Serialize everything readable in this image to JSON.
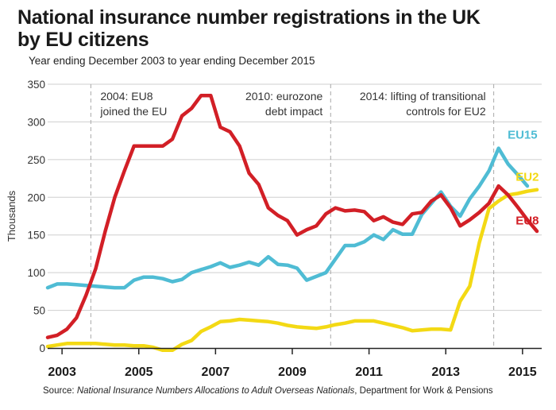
{
  "header": {
    "title_line1": "National insurance number registrations in the UK",
    "title_line2": "by EU citizens",
    "subtitle": "Year ending December 2003 to year ending December 2015"
  },
  "source": {
    "prefix": "Source: ",
    "publication": "National Insurance Numbers Allocations to Adult Overseas Nationals",
    "suffix": ", Department for Work & Pensions"
  },
  "colors": {
    "EU8": "#d21f26",
    "EU15": "#4fbcd4",
    "EU2": "#f3d914",
    "grid": "#cfcfcf",
    "axis": "#222222"
  },
  "chart_data": {
    "type": "line",
    "title": "National insurance number registrations in the UK by EU citizens",
    "xlabel": "",
    "ylabel": "Thousands",
    "xlim": [
      2002.625,
      2015.5
    ],
    "ylim": [
      0,
      350
    ],
    "yticks": [
      0,
      50,
      100,
      150,
      200,
      250,
      300,
      350
    ],
    "xticks": [
      2003,
      2005,
      2007,
      2009,
      2011,
      2013,
      2015
    ],
    "xtick_labels": [
      "2003",
      "2005",
      "2007",
      "2009",
      "2011",
      "2013",
      "2015"
    ],
    "grid": true,
    "annotations": [
      {
        "x": 2003.75,
        "lines": [
          "2004: EU8",
          "joined the EU"
        ],
        "align": "left"
      },
      {
        "x": 2010.0,
        "lines": [
          "2010: eurozone",
          "debt impact"
        ],
        "align": "right"
      },
      {
        "x": 2014.25,
        "lines": [
          "2014: lifting of transitional",
          "controls for EU2"
        ],
        "align": "right"
      }
    ],
    "series": [
      {
        "name": "EU8",
        "x": [
          2002.625,
          2002.875,
          2003.125,
          2003.375,
          2003.625,
          2003.875,
          2004.125,
          2004.375,
          2004.625,
          2004.875,
          2005.125,
          2005.375,
          2005.625,
          2005.875,
          2006.125,
          2006.375,
          2006.625,
          2006.875,
          2007.125,
          2007.375,
          2007.625,
          2007.875,
          2008.125,
          2008.375,
          2008.625,
          2008.875,
          2009.125,
          2009.375,
          2009.625,
          2009.875,
          2010.125,
          2010.375,
          2010.625,
          2010.875,
          2011.125,
          2011.375,
          2011.625,
          2011.875,
          2012.125,
          2012.375,
          2012.625,
          2012.875,
          2013.125,
          2013.375,
          2013.625,
          2013.875,
          2014.125,
          2014.375,
          2014.625,
          2014.875,
          2015.125,
          2015.375
        ],
        "values": [
          14,
          17,
          25,
          40,
          70,
          105,
          155,
          200,
          235,
          268,
          268,
          268,
          268,
          277,
          308,
          318,
          335,
          335,
          293,
          287,
          268,
          232,
          217,
          186,
          176,
          169,
          150,
          157,
          162,
          178,
          186,
          182,
          183,
          181,
          169,
          174,
          167,
          164,
          178,
          180,
          195,
          203,
          186,
          162,
          170,
          180,
          192,
          215,
          203,
          187,
          170,
          155
        ]
      },
      {
        "name": "EU15",
        "x": [
          2002.625,
          2002.875,
          2003.125,
          2003.375,
          2003.625,
          2003.875,
          2004.125,
          2004.375,
          2004.625,
          2004.875,
          2005.125,
          2005.375,
          2005.625,
          2005.875,
          2006.125,
          2006.375,
          2006.625,
          2006.875,
          2007.125,
          2007.375,
          2007.625,
          2007.875,
          2008.125,
          2008.375,
          2008.625,
          2008.875,
          2009.125,
          2009.375,
          2009.625,
          2009.875,
          2010.125,
          2010.375,
          2010.625,
          2010.875,
          2011.125,
          2011.375,
          2011.625,
          2011.875,
          2012.125,
          2012.375,
          2012.625,
          2012.875,
          2013.125,
          2013.375,
          2013.625,
          2013.875,
          2014.125,
          2014.375,
          2014.625,
          2014.875,
          2015.125
        ],
        "values": [
          80,
          85,
          85,
          84,
          83,
          82,
          81,
          80,
          80,
          90,
          94,
          94,
          92,
          88,
          91,
          100,
          104,
          108,
          113,
          107,
          110,
          114,
          110,
          121,
          111,
          110,
          106,
          90,
          95,
          100,
          118,
          136,
          136,
          141,
          150,
          144,
          157,
          151,
          151,
          177,
          192,
          207,
          188,
          175,
          198,
          215,
          235,
          265,
          244,
          230,
          215
        ]
      },
      {
        "name": "EU2",
        "x": [
          2002.625,
          2002.875,
          2003.125,
          2003.375,
          2003.625,
          2003.875,
          2004.125,
          2004.375,
          2004.625,
          2004.875,
          2005.125,
          2005.375,
          2005.625,
          2005.875,
          2006.125,
          2006.375,
          2006.625,
          2006.875,
          2007.125,
          2007.375,
          2007.625,
          2007.875,
          2008.125,
          2008.375,
          2008.625,
          2008.875,
          2009.125,
          2009.375,
          2009.625,
          2009.875,
          2010.125,
          2010.375,
          2010.625,
          2010.875,
          2011.125,
          2011.375,
          2011.625,
          2011.875,
          2012.125,
          2012.375,
          2012.625,
          2012.875,
          2013.125,
          2013.375,
          2013.625,
          2013.875,
          2014.125,
          2014.375,
          2014.625,
          2014.875,
          2015.125,
          2015.375
        ],
        "values": [
          2,
          4,
          6,
          6,
          6,
          6,
          5,
          4,
          4,
          3,
          3,
          1,
          -3,
          -3,
          5,
          10,
          22,
          28,
          35,
          36,
          38,
          37,
          36,
          35,
          33,
          30,
          28,
          27,
          26,
          28,
          31,
          33,
          36,
          36,
          36,
          33,
          30,
          27,
          23,
          24,
          25,
          25,
          24,
          62,
          82,
          140,
          185,
          195,
          203,
          205,
          208,
          210
        ]
      }
    ],
    "labels": [
      {
        "series": "EU15",
        "text": "EU15",
        "x": 2015.0,
        "y": 278
      },
      {
        "series": "EU2",
        "text": "EU2",
        "x": 2015.125,
        "y": 222
      },
      {
        "series": "EU8",
        "text": "EU8",
        "x": 2015.125,
        "y": 164
      }
    ]
  }
}
